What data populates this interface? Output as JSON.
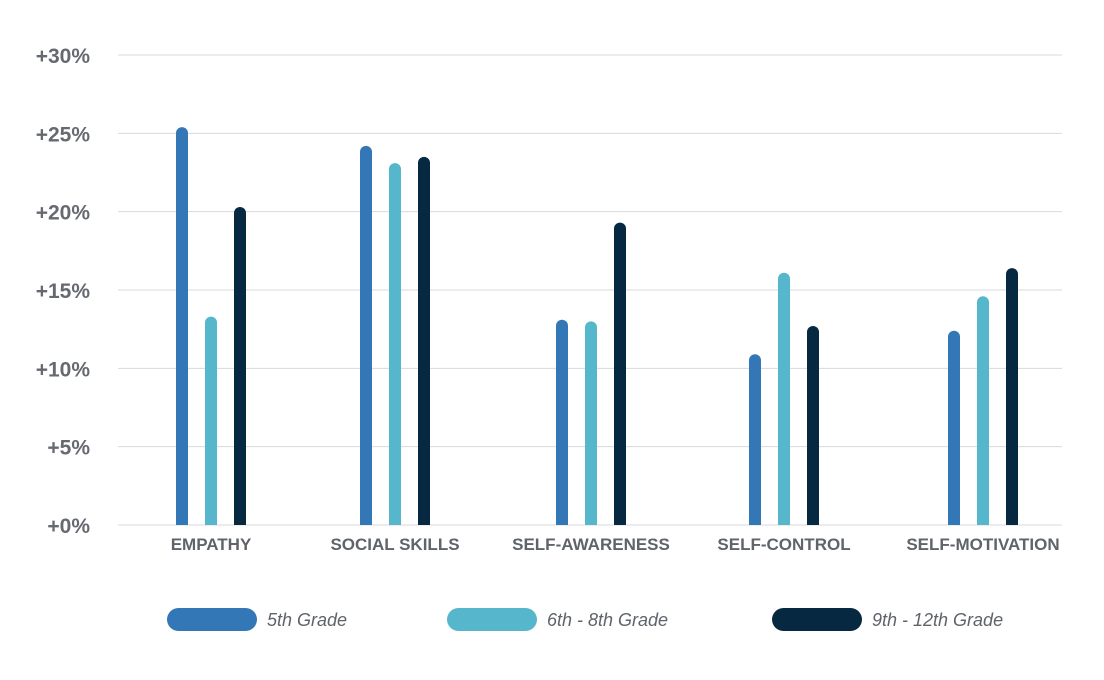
{
  "chart_data": {
    "type": "bar",
    "categories": [
      "EMPATHY",
      "SOCIAL SKILLS",
      "SELF-AWARENESS",
      "SELF-CONTROL",
      "SELF-MOTIVATION"
    ],
    "series": [
      {
        "name": "5th Grade",
        "color": "#3477b7",
        "values": [
          25.4,
          24.2,
          13.1,
          10.9,
          12.4
        ]
      },
      {
        "name": "6th - 8th Grade",
        "color": "#56b6cc",
        "values": [
          13.3,
          23.1,
          13.0,
          16.1,
          14.6
        ]
      },
      {
        "name": "9th - 12th Grade",
        "color": "#062941",
        "values": [
          20.3,
          23.5,
          19.3,
          12.7,
          16.4
        ]
      }
    ],
    "ylim": [
      0,
      30
    ],
    "yticks": [
      0,
      5,
      10,
      15,
      20,
      25,
      30
    ],
    "ytick_labels": [
      "+0%",
      "+5%",
      "+10%",
      "+15%",
      "+20%",
      "+25%",
      "+30%"
    ],
    "grid": true,
    "legend_position": "bottom",
    "title": "",
    "xlabel": "",
    "ylabel": ""
  }
}
